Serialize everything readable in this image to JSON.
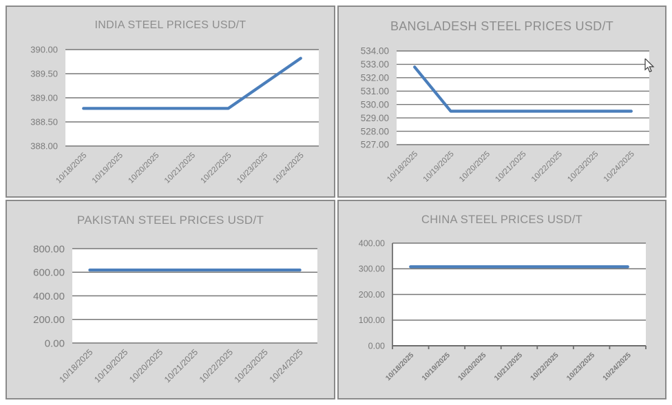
{
  "window": {
    "description": "Four steel price line charts arranged in a 2x2 grid"
  },
  "colors": {
    "line": "#4a7ebb",
    "grid": "#767676",
    "axis": "#6d6d6d",
    "label_text": "#7b7b7b",
    "title_text": "#8d8d8d",
    "panel_bg": "#d9d9d9",
    "panel_border": "#8a8a8a",
    "plot_bg": "#ffffff"
  },
  "chart_data": [
    {
      "id": "india",
      "type": "line",
      "title": "INDIA STEEL PRICES USD/T",
      "categories": [
        "10/18/2025",
        "10/19/2025",
        "10/20/2025",
        "10/21/2025",
        "10/22/2025",
        "10/23/2025",
        "10/24/2025"
      ],
      "values": [
        388.78,
        388.78,
        388.78,
        388.78,
        388.78,
        389.3,
        389.82
      ],
      "ylim": [
        388.0,
        390.0
      ],
      "ytick_step": 0.5,
      "ytick_labels": [
        "390.00",
        "389.50",
        "389.00",
        "388.50",
        "388.00"
      ],
      "grid": true,
      "legend": "none",
      "x_axis_tick_marks": false
    },
    {
      "id": "bangladesh",
      "type": "line",
      "title": "BANGLADESH STEEL PRICES USD/T",
      "categories": [
        "10/18/2025",
        "10/19/2025",
        "10/20/2025",
        "10/21/2025",
        "10/22/2025",
        "10/23/2025",
        "10/24/2025"
      ],
      "values": [
        532.8,
        529.5,
        529.5,
        529.5,
        529.5,
        529.5,
        529.5
      ],
      "ylim": [
        527.0,
        534.0
      ],
      "ytick_step": 1,
      "ytick_labels": [
        "534.00",
        "533.00",
        "532.00",
        "531.00",
        "530.00",
        "529.00",
        "528.00",
        "527.00"
      ],
      "grid": true,
      "legend": "none",
      "x_axis_tick_marks": false
    },
    {
      "id": "pakistan",
      "type": "line",
      "title": "PAKISTAN STEEL PRICES USD/T",
      "categories": [
        "10/18/2025",
        "10/19/2025",
        "10/20/2025",
        "10/21/2025",
        "10/22/2025",
        "10/23/2025",
        "10/24/2025"
      ],
      "values": [
        619,
        619,
        619,
        619,
        619,
        619,
        619
      ],
      "ylim": [
        0.0,
        800.0
      ],
      "ytick_step": 200,
      "ytick_labels": [
        "800.00",
        "600.00",
        "400.00",
        "200.00",
        "0.00"
      ],
      "grid": true,
      "legend": "none",
      "x_axis_tick_marks": false
    },
    {
      "id": "china",
      "type": "line",
      "title": "CHINA STEEL PRICES USD/T",
      "categories": [
        "10/18/2025",
        "10/19/2025",
        "10/20/2025",
        "10/21/2025",
        "10/22/2025",
        "10/23/2025",
        "10/24/2025"
      ],
      "values": [
        308,
        308,
        308,
        308,
        308,
        308,
        308
      ],
      "ylim": [
        0.0,
        400.0
      ],
      "ytick_step": 100,
      "ytick_labels": [
        "400.00",
        "300.00",
        "200.00",
        "100.00",
        "0.00"
      ],
      "grid": true,
      "legend": "none",
      "x_axis_tick_marks": true
    }
  ],
  "cursor": {
    "icon": "arrow-pointer"
  }
}
